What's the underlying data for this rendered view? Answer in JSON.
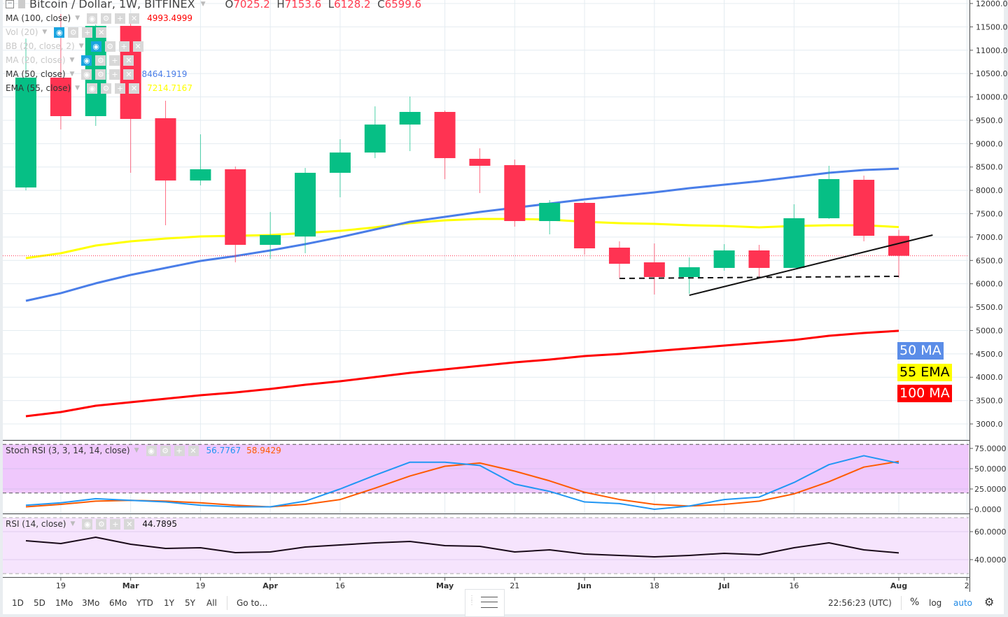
{
  "header": {
    "symbol_title": "Bitcoin / Dollar, 1W, BITFINEX",
    "ohlc": {
      "o_label": "O",
      "o": "7025.2",
      "h_label": "H",
      "h": "7153.6",
      "l_label": "L",
      "l": "6128.2",
      "c_label": "C",
      "c": "6599.6"
    }
  },
  "indicators": [
    {
      "name": "MA (100, close)",
      "value": "4993.4999",
      "color": "#ff0000",
      "faded": false
    },
    {
      "name": "Vol (20)",
      "value": "",
      "color": "",
      "faded": true
    },
    {
      "name": "BB (20, close, 2)",
      "value": "",
      "color": "",
      "faded": true
    },
    {
      "name": "MA (20, close)",
      "value": "",
      "color": "",
      "faded": true
    },
    {
      "name": "MA (50, close)",
      "value": "8464.1919",
      "color": "#4a7ee8",
      "faded": false
    },
    {
      "name": "EMA (55, close)",
      "value": "7214.7167",
      "color": "#ffff00",
      "faded": false
    }
  ],
  "oscillators": {
    "stoch": {
      "name": "Stoch RSI (3, 3, 14, 14, close)",
      "k_value": "56.7767",
      "d_value": "58.9429",
      "k_color": "#2196f3",
      "d_color": "#ff5a00"
    },
    "rsi": {
      "name": "RSI (14, close)",
      "value": "44.7895",
      "color": "#1a0a1a"
    }
  },
  "tags": {
    "ma50": "50 MA",
    "ema55": "55 EMA",
    "ma100": "100 MA"
  },
  "colors": {
    "up": "#06bf85",
    "down": "#ff3352",
    "ma50": "#4a7ee8",
    "ema55": "#ffff00",
    "ma100": "#ff0000",
    "stoch_band": "#efc8fc",
    "rsi_band": "#f6e4fd"
  },
  "chart_data": {
    "type": "candlestick",
    "price_axis": {
      "ticks": [
        "12000.0",
        "11500.0",
        "11000.0",
        "10500.0",
        "10000.0",
        "9500.0",
        "9000.0",
        "8500.0",
        "8000.0",
        "7500.0",
        "7000.0",
        "6500.0",
        "6000.0",
        "5500.0",
        "5000.0",
        "4500.0",
        "4000.0",
        "3500.0",
        "3000.0"
      ],
      "range": [
        3000,
        12000
      ]
    },
    "last_price": 6599.6,
    "candles": [
      [
        8062,
        11250,
        8000,
        10413
      ],
      [
        10413,
        11775,
        9305,
        9589
      ],
      [
        9589,
        11550,
        9380,
        11521
      ],
      [
        11521,
        11775,
        8376,
        9529
      ],
      [
        9544,
        9918,
        7253,
        8211
      ],
      [
        8211,
        9200,
        8106,
        8451
      ],
      [
        8451,
        8510,
        6459,
        6834
      ],
      [
        6834,
        7537,
        6534,
        7043
      ],
      [
        7013,
        8480,
        6654,
        8376
      ],
      [
        8376,
        9095,
        7852,
        8810
      ],
      [
        8810,
        9798,
        8690,
        9409
      ],
      [
        9409,
        10008,
        8840,
        9679
      ],
      [
        9679,
        9709,
        8240,
        8690
      ],
      [
        8675,
        8900,
        7942,
        8526
      ],
      [
        8540,
        8660,
        7223,
        7343
      ],
      [
        7343,
        7792,
        7058,
        7732
      ],
      [
        7732,
        7762,
        6624,
        6759
      ],
      [
        6774,
        6909,
        6130,
        6429
      ],
      [
        6459,
        6864,
        5770,
        6145
      ],
      [
        6145,
        6564,
        5785,
        6354
      ],
      [
        6340,
        6849,
        6280,
        6714
      ],
      [
        6714,
        6834,
        6115,
        6340
      ],
      [
        6340,
        7702,
        6340,
        7403
      ],
      [
        7403,
        8526,
        7388,
        8241
      ],
      [
        8226,
        8316,
        6909,
        7028
      ],
      [
        7025.2,
        7153.6,
        6128.2,
        6599.6
      ]
    ],
    "ma50": [
      5636,
      5800,
      6010,
      6190,
      6340,
      6489,
      6594,
      6714,
      6849,
      6998,
      7163,
      7328,
      7433,
      7537,
      7627,
      7717,
      7807,
      7882,
      7957,
      8046,
      8121,
      8196,
      8286,
      8376,
      8436,
      8464.19
    ],
    "ema55": [
      6549,
      6654,
      6819,
      6909,
      6969,
      7013,
      7028,
      7043,
      7088,
      7133,
      7208,
      7298,
      7358,
      7388,
      7388,
      7373,
      7328,
      7298,
      7283,
      7253,
      7238,
      7208,
      7238,
      7253,
      7253,
      7214.72
    ],
    "ma100": [
      3165,
      3255,
      3390,
      3465,
      3540,
      3614,
      3674,
      3749,
      3839,
      3914,
      4003,
      4093,
      4168,
      4243,
      4318,
      4378,
      4453,
      4498,
      4558,
      4617,
      4677,
      4737,
      4797,
      4887,
      4947,
      4993.5
    ],
    "trendlines": [
      {
        "style": "solid",
        "from": [
          19,
          5755
        ],
        "to": [
          25.97,
          7043
        ]
      },
      {
        "style": "dashed",
        "from": [
          17,
          6115
        ],
        "to": [
          25,
          6160
        ]
      }
    ],
    "stoch_axis": {
      "ticks": [
        "75.0000",
        "50.0000",
        "25.0000",
        "0.0000"
      ],
      "band": [
        20,
        80
      ]
    },
    "stoch_k": [
      5,
      8,
      13,
      11,
      9,
      5,
      3,
      3,
      10,
      25,
      42,
      58,
      58,
      54,
      31,
      22,
      9,
      7,
      0,
      4,
      12,
      15,
      33,
      55,
      66,
      56.78
    ],
    "stoch_d": [
      3,
      6,
      10,
      11,
      10,
      8,
      5,
      3,
      6,
      12,
      26,
      41,
      53,
      57,
      47,
      35,
      21,
      12,
      6,
      4,
      6,
      10,
      19,
      34,
      52,
      58.94
    ],
    "rsi_axis": {
      "ticks": [
        "60.0000",
        "40.0000"
      ],
      "band": [
        30,
        70
      ]
    },
    "rsi": [
      53.5,
      51.5,
      56,
      51,
      48,
      48.5,
      45,
      45.5,
      49,
      50.5,
      52,
      53,
      50,
      49.5,
      45.5,
      47,
      44,
      43,
      42,
      43,
      44.5,
      43.5,
      48.5,
      52,
      47,
      44.79
    ],
    "time_ticks": [
      {
        "label": "19",
        "at": 1,
        "bold": false
      },
      {
        "label": "Mar",
        "at": 3,
        "bold": true
      },
      {
        "label": "19",
        "at": 5,
        "bold": false
      },
      {
        "label": "Apr",
        "at": 7,
        "bold": true
      },
      {
        "label": "16",
        "at": 9,
        "bold": false
      },
      {
        "label": "May",
        "at": 12,
        "bold": true
      },
      {
        "label": "21",
        "at": 14,
        "bold": false
      },
      {
        "label": "Jun",
        "at": 16,
        "bold": true
      },
      {
        "label": "18",
        "at": 18,
        "bold": false
      },
      {
        "label": "Jul",
        "at": 20,
        "bold": true
      },
      {
        "label": "16",
        "at": 22,
        "bold": false
      },
      {
        "label": "Aug",
        "at": 25,
        "bold": true
      },
      {
        "label": "2",
        "at": 26.95,
        "bold": false
      }
    ]
  },
  "toolbar": {
    "ranges": [
      "1D",
      "5D",
      "1Mo",
      "3Mo",
      "6Mo",
      "YTD",
      "1Y",
      "5Y",
      "All"
    ],
    "goto": "Go to…",
    "clock": "22:56:23 (UTC)",
    "percent": "%",
    "log": "log",
    "auto": "auto"
  }
}
